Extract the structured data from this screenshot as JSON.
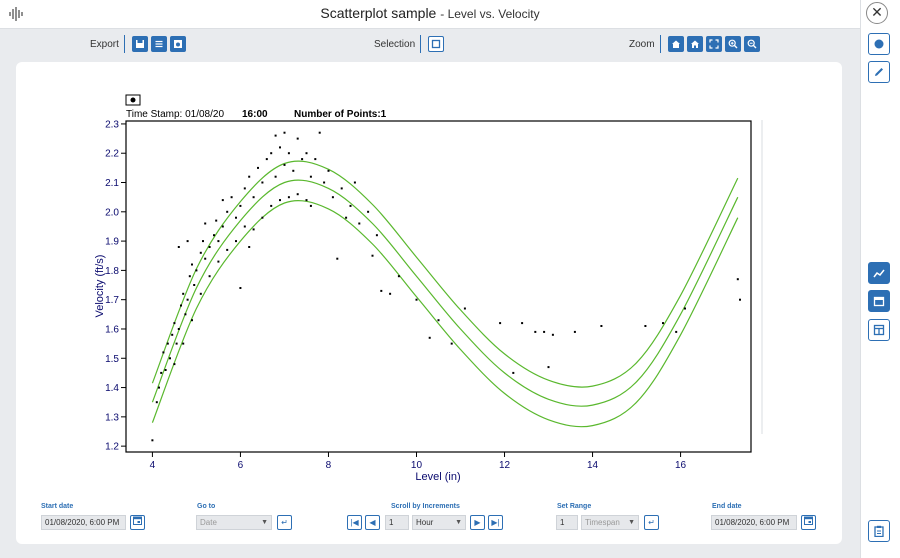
{
  "window": {
    "title": "Scatterplot sample",
    "subtitle": "- Level vs. Velocity",
    "close_glyph": "✕",
    "app_icon": "waveform-icon"
  },
  "toolbar": {
    "export_label": "Export",
    "selection_label": "Selection",
    "zoom_label": "Zoom",
    "export_icons": [
      "save-icon",
      "list-icon",
      "image-icon"
    ],
    "selection_icons": [
      "select-rect-icon"
    ],
    "zoom_icons": [
      "home-icon",
      "home-fit-icon",
      "fit-screen-icon",
      "zoom-in-icon",
      "zoom-out-icon"
    ]
  },
  "right_sidebar": {
    "icons": [
      "record-icon",
      "pencil-icon",
      "trend-icon",
      "calendar-icon",
      "layout-icon",
      "clipboard-icon"
    ]
  },
  "chart_header": {
    "timestamp_label": "Time Stamp: 01/08/20",
    "time_value": "16:00",
    "points_label": "Number of Points:1"
  },
  "chart_data": {
    "type": "scatter",
    "xlabel": "Level (in)",
    "ylabel": "Velocity (ft/s)",
    "xlim": [
      3.4,
      17.6
    ],
    "ylim": [
      1.18,
      2.31
    ],
    "xticks": [
      4,
      6,
      8,
      10,
      12,
      14,
      16
    ],
    "yticks": [
      1.2,
      1.3,
      1.4,
      1.5,
      1.6,
      1.7,
      1.8,
      1.9,
      2.0,
      2.1,
      2.2,
      2.3
    ],
    "ytick_labels": [
      "1.2",
      "1.3",
      "1.4",
      "1.5",
      "1.6",
      "1.7",
      "1.8",
      "1.9",
      "2.0",
      "2.1",
      "2.2",
      "2.3"
    ],
    "colors": {
      "points": "#000000",
      "curves": "#5ab82e",
      "axis": "#000000",
      "labels": "#0a0a6e"
    },
    "curve_knots": {
      "x": [
        4,
        5,
        6,
        7,
        8,
        9,
        10,
        11,
        12,
        13,
        14,
        15,
        16,
        17.3
      ],
      "y_mid": [
        1.35,
        1.74,
        1.97,
        2.1,
        2.08,
        1.96,
        1.78,
        1.6,
        1.45,
        1.36,
        1.34,
        1.42,
        1.65,
        2.05
      ]
    },
    "curve_offsets": [
      0.065,
      0,
      -0.07
    ],
    "points": [
      [
        4.0,
        1.22
      ],
      [
        4.15,
        1.4
      ],
      [
        4.2,
        1.45
      ],
      [
        4.25,
        1.52
      ],
      [
        4.35,
        1.55
      ],
      [
        4.4,
        1.5
      ],
      [
        4.45,
        1.58
      ],
      [
        4.5,
        1.62
      ],
      [
        4.55,
        1.55
      ],
      [
        4.6,
        1.6
      ],
      [
        4.65,
        1.68
      ],
      [
        4.7,
        1.72
      ],
      [
        4.75,
        1.65
      ],
      [
        4.8,
        1.7
      ],
      [
        4.85,
        1.78
      ],
      [
        4.9,
        1.82
      ],
      [
        4.95,
        1.75
      ],
      [
        5.0,
        1.8
      ],
      [
        5.1,
        1.86
      ],
      [
        5.15,
        1.9
      ],
      [
        5.2,
        1.84
      ],
      [
        5.3,
        1.88
      ],
      [
        5.4,
        1.92
      ],
      [
        5.45,
        1.97
      ],
      [
        5.5,
        1.9
      ],
      [
        5.6,
        1.95
      ],
      [
        5.7,
        2.0
      ],
      [
        5.8,
        2.05
      ],
      [
        5.9,
        1.98
      ],
      [
        6.0,
        2.02
      ],
      [
        6.1,
        2.08
      ],
      [
        6.2,
        2.12
      ],
      [
        6.3,
        2.05
      ],
      [
        6.4,
        2.15
      ],
      [
        6.5,
        2.1
      ],
      [
        6.6,
        2.18
      ],
      [
        6.7,
        2.2
      ],
      [
        6.8,
        2.12
      ],
      [
        6.9,
        2.22
      ],
      [
        7.0,
        2.16
      ],
      [
        7.1,
        2.2
      ],
      [
        7.2,
        2.14
      ],
      [
        7.3,
        2.25
      ],
      [
        7.4,
        2.18
      ],
      [
        7.5,
        2.2
      ],
      [
        7.6,
        2.12
      ],
      [
        7.7,
        2.18
      ],
      [
        7.8,
        2.27
      ],
      [
        7.9,
        2.1
      ],
      [
        8.0,
        2.14
      ],
      [
        8.1,
        2.05
      ],
      [
        8.3,
        2.08
      ],
      [
        8.5,
        2.02
      ],
      [
        8.7,
        1.96
      ],
      [
        8.9,
        2.0
      ],
      [
        9.1,
        1.92
      ],
      [
        9.2,
        1.73
      ],
      [
        9.4,
        1.72
      ],
      [
        9.0,
        1.85
      ],
      [
        8.2,
        1.84
      ],
      [
        9.6,
        1.78
      ],
      [
        10.0,
        1.7
      ],
      [
        10.3,
        1.57
      ],
      [
        10.5,
        1.63
      ],
      [
        10.8,
        1.55
      ],
      [
        11.1,
        1.67
      ],
      [
        11.9,
        1.62
      ],
      [
        12.2,
        1.45
      ],
      [
        12.4,
        1.62
      ],
      [
        12.7,
        1.59
      ],
      [
        12.9,
        1.59
      ],
      [
        13.1,
        1.58
      ],
      [
        13.0,
        1.47
      ],
      [
        13.6,
        1.59
      ],
      [
        14.2,
        1.61
      ],
      [
        15.2,
        1.61
      ],
      [
        15.6,
        1.62
      ],
      [
        15.9,
        1.59
      ],
      [
        16.1,
        1.67
      ],
      [
        17.3,
        1.77
      ],
      [
        17.35,
        1.7
      ],
      [
        4.1,
        1.35
      ],
      [
        4.3,
        1.46
      ],
      [
        4.5,
        1.48
      ],
      [
        4.7,
        1.55
      ],
      [
        4.9,
        1.63
      ],
      [
        5.1,
        1.72
      ],
      [
        5.3,
        1.78
      ],
      [
        5.5,
        1.83
      ],
      [
        5.7,
        1.87
      ],
      [
        5.9,
        1.9
      ],
      [
        6.1,
        1.95
      ],
      [
        6.3,
        1.94
      ],
      [
        6.5,
        1.98
      ],
      [
        6.7,
        2.02
      ],
      [
        6.9,
        2.04
      ],
      [
        7.1,
        2.05
      ],
      [
        7.3,
        2.06
      ],
      [
        7.5,
        2.04
      ],
      [
        6.0,
        1.74
      ],
      [
        6.2,
        1.88
      ],
      [
        6.8,
        2.26
      ],
      [
        7.0,
        2.27
      ],
      [
        5.6,
        2.04
      ],
      [
        5.2,
        1.96
      ],
      [
        4.8,
        1.9
      ],
      [
        4.6,
        1.88
      ],
      [
        7.6,
        2.02
      ],
      [
        8.4,
        1.98
      ],
      [
        8.6,
        2.1
      ]
    ]
  },
  "controls": {
    "start_date_label": "Start date",
    "start_date_value": "01/08/2020, 6:00 PM",
    "goto_label": "Go to",
    "goto_value": "Date",
    "scroll_label": "Scroll by Increments",
    "scroll_count": "1",
    "scroll_unit": "Hour",
    "range_label": "Set Range",
    "range_count": "1",
    "range_unit": "Timespan",
    "end_date_label": "End date",
    "end_date_value": "01/08/2020, 6:00 PM",
    "nav_first": "|◀",
    "nav_prev": "◀",
    "nav_next": "▶",
    "nav_last": "▶|",
    "enter_glyph": "↵"
  }
}
